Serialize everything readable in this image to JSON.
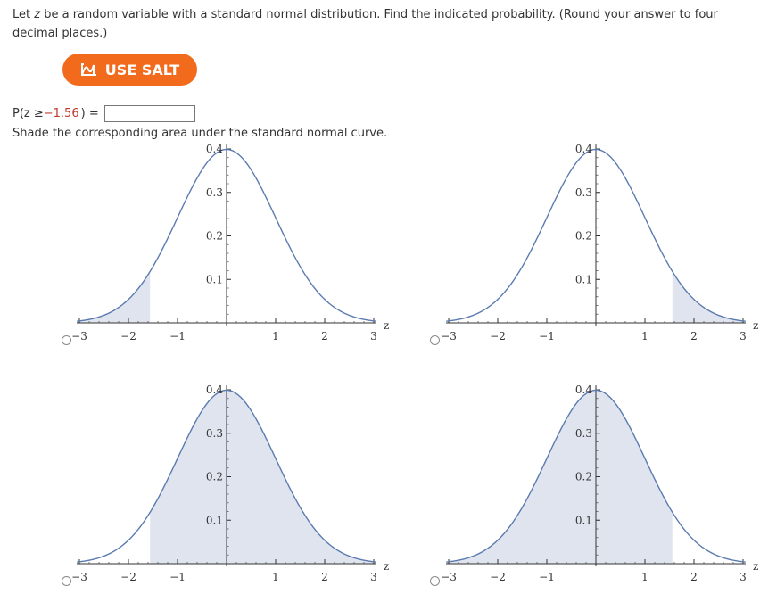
{
  "question": {
    "part1": "Let ",
    "var": "z",
    "part2": " be a random variable with a standard normal distribution. Find the indicated probability. (Round your answer to four decimal places.)"
  },
  "salt_button": {
    "label": "USE SALT",
    "icon": "salt-icon",
    "color": "#f26b1d"
  },
  "probability": {
    "prefix": "P(z ≥ ",
    "value": "−1.56",
    "suffix": ") =",
    "answer": ""
  },
  "instruction": "Shade the corresponding area under the standard normal curve.",
  "graphs_common": {
    "x_ticks": [
      "−3",
      "−2",
      "−1",
      "1",
      "2",
      "3"
    ],
    "y_ticks": [
      "0.1",
      "0.2",
      "0.3",
      "0.4"
    ],
    "x_label": "z",
    "x_range": [
      -3,
      3
    ],
    "y_range": [
      0,
      0.4
    ],
    "curve_color": "#5b7bb0",
    "fill_color": "#dfe4ee"
  },
  "graphs": [
    {
      "id": "a",
      "shade_from": -3.2,
      "shade_to": -1.56,
      "description_shade": "left tail"
    },
    {
      "id": "b",
      "shade_from": 1.56,
      "shade_to": 3.2,
      "description_shade": "right tail"
    },
    {
      "id": "c",
      "shade_from": -1.56,
      "shade_to": 3.2,
      "description_shade": "z ≥ -1.56"
    },
    {
      "id": "d",
      "shade_from": -3.2,
      "shade_to": 1.56,
      "description_shade": "z ≤ 1.56"
    }
  ]
}
